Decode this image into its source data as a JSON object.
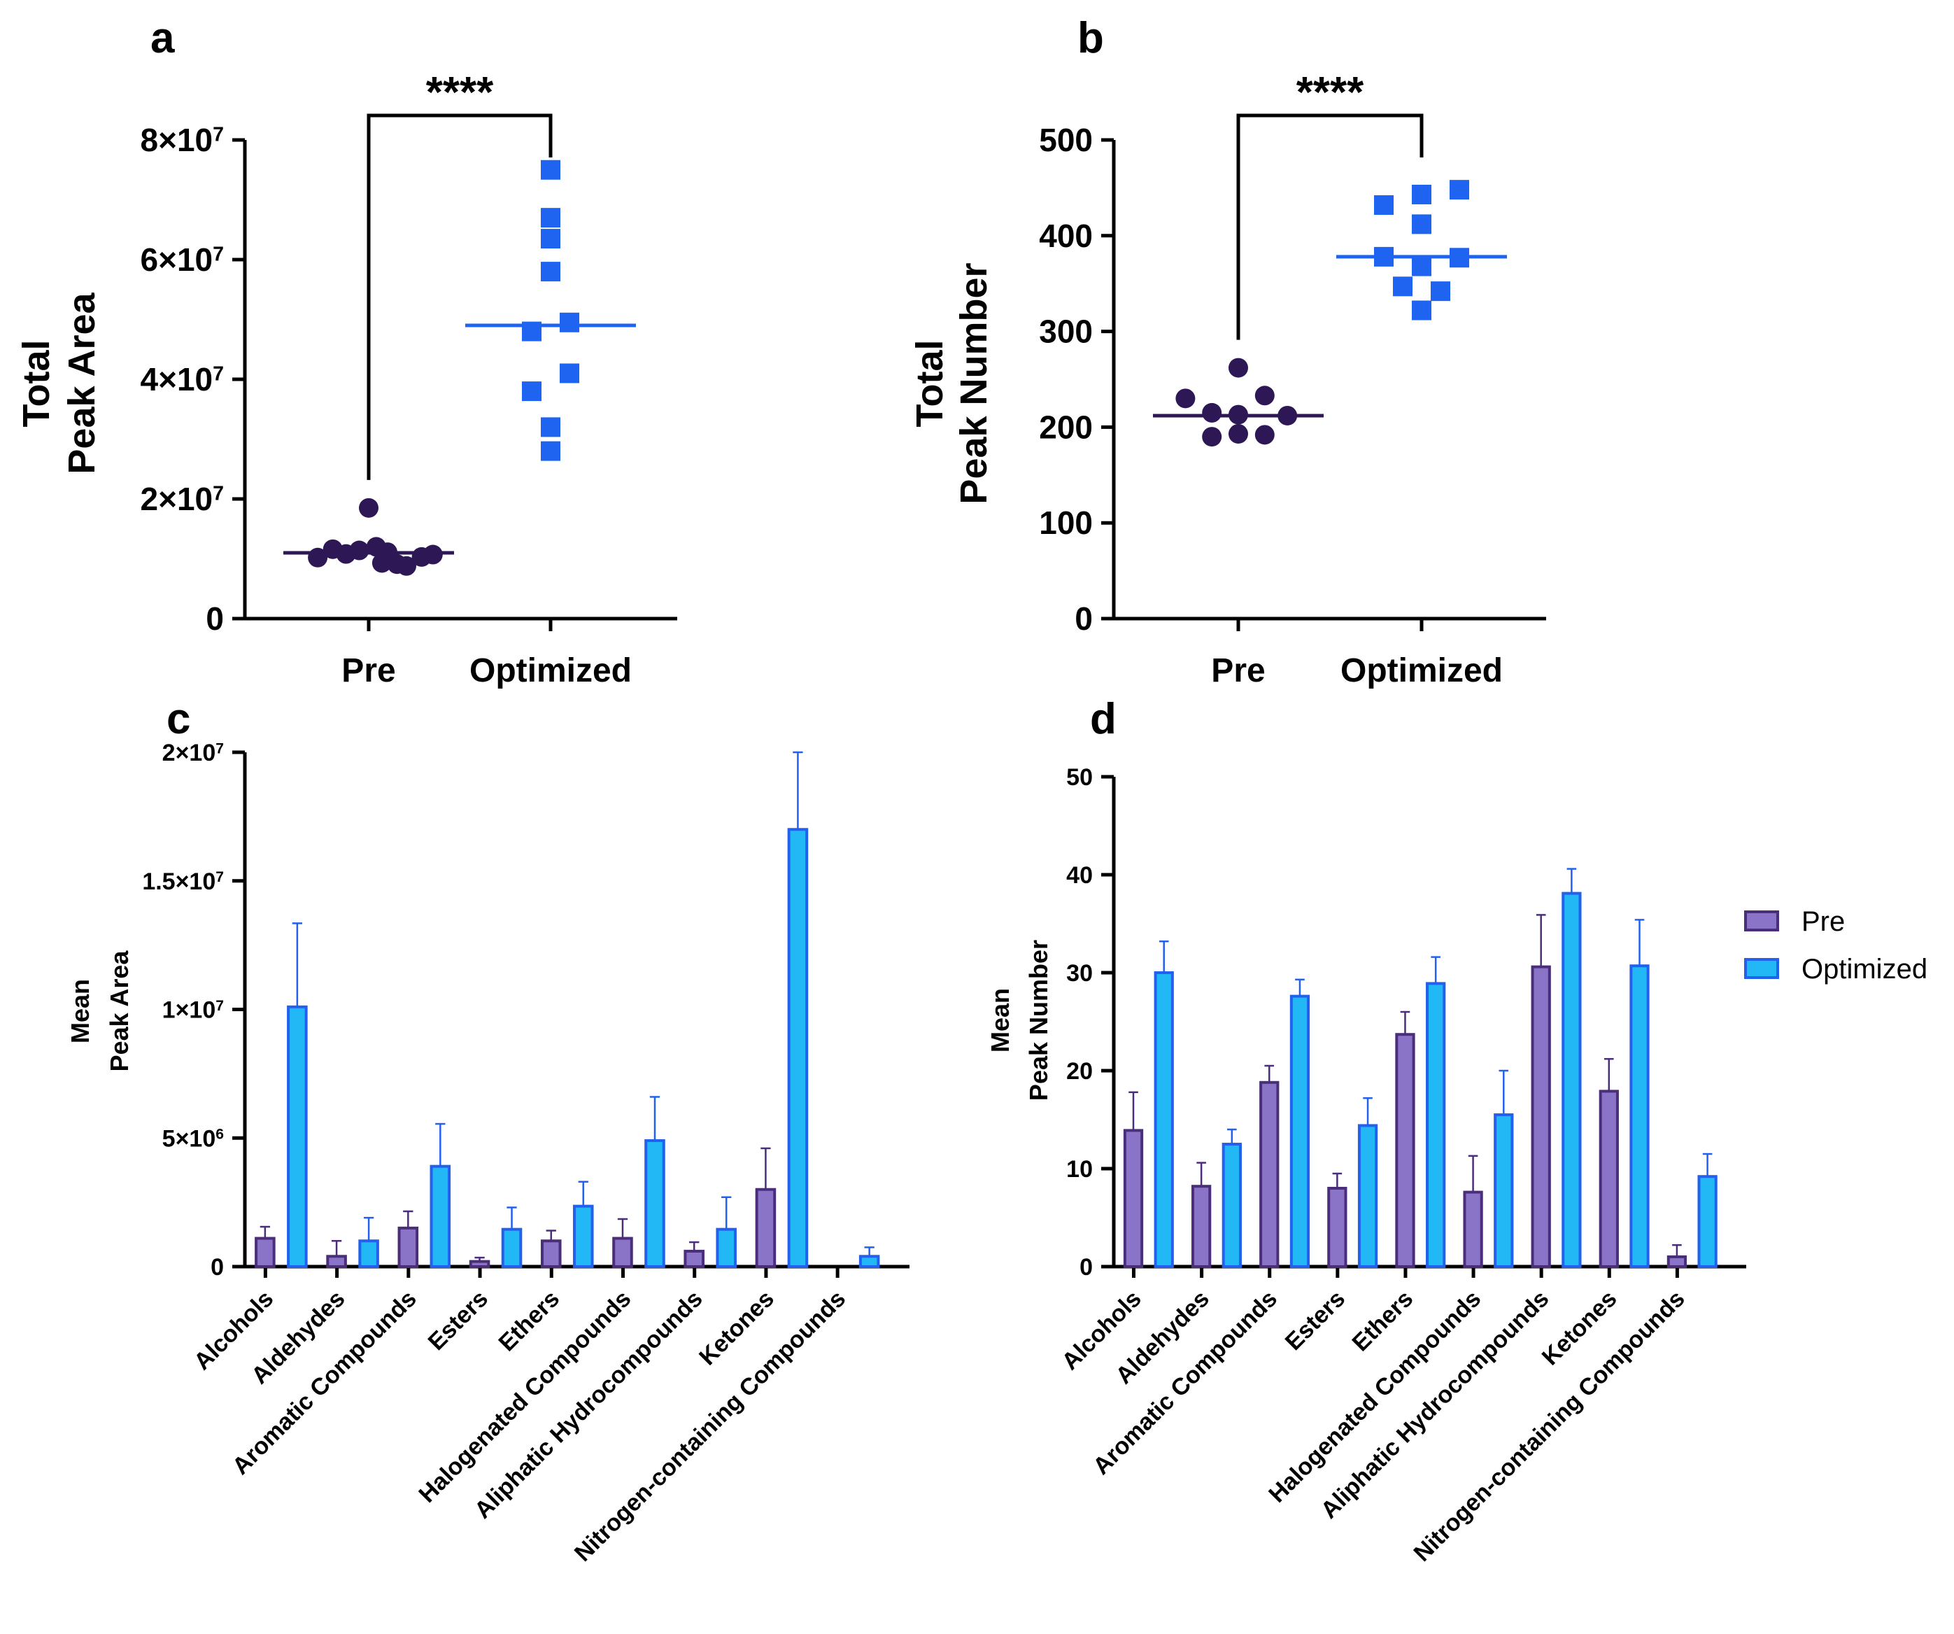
{
  "colors": {
    "pre": "#2d1855",
    "optimized": "#1f64f0",
    "pre_bar": "#8a74c8",
    "opt_bar": "#21b8f5",
    "err_pre": "#4a2e7a",
    "err_opt": "#2260ee"
  },
  "chart_data": [
    {
      "panel": "a",
      "type": "scatter",
      "ylabel_lines": [
        "Total",
        "Peak Area"
      ],
      "categories": [
        "Pre",
        "Optimized"
      ],
      "ylim": [
        0,
        80000000
      ],
      "yticks": [
        0,
        20000000,
        40000000,
        60000000,
        80000000
      ],
      "ytick_labels": [
        {
          "base": "0",
          "exp": ""
        },
        {
          "base": "2×10",
          "exp": "7"
        },
        {
          "base": "4×10",
          "exp": "7"
        },
        {
          "base": "6×10",
          "exp": "7"
        },
        {
          "base": "8×10",
          "exp": "7"
        }
      ],
      "series": [
        {
          "name": "Pre",
          "marker": "circle",
          "median": 11000000,
          "points": [
            [
              -0.27,
              10200000
            ],
            [
              -0.19,
              11600000
            ],
            [
              -0.12,
              10800000
            ],
            [
              -0.05,
              11400000
            ],
            [
              0.0,
              18500000
            ],
            [
              0.04,
              12000000
            ],
            [
              0.1,
              11100000
            ],
            [
              0.15,
              9100000
            ],
            [
              0.2,
              8800000
            ],
            [
              0.28,
              10300000
            ],
            [
              0.34,
              10700000
            ],
            [
              0.07,
              9300000
            ]
          ]
        },
        {
          "name": "Optimized",
          "marker": "square",
          "median": 49000000,
          "points": [
            [
              0.0,
              75000000
            ],
            [
              0.0,
              67000000
            ],
            [
              0.0,
              63500000
            ],
            [
              0.0,
              58000000
            ],
            [
              0.1,
              49500000
            ],
            [
              -0.1,
              48000000
            ],
            [
              0.1,
              41000000
            ],
            [
              -0.1,
              38000000
            ],
            [
              0.0,
              32000000
            ],
            [
              0.0,
              28000000
            ]
          ]
        }
      ],
      "significance": "****"
    },
    {
      "panel": "b",
      "type": "scatter",
      "ylabel_lines": [
        "Total",
        "Peak Number"
      ],
      "categories": [
        "Pre",
        "Optimized"
      ],
      "ylim": [
        0,
        500
      ],
      "yticks": [
        0,
        100,
        200,
        300,
        400,
        500
      ],
      "ytick_labels": [
        {
          "base": "0",
          "exp": ""
        },
        {
          "base": "100",
          "exp": ""
        },
        {
          "base": "200",
          "exp": ""
        },
        {
          "base": "300",
          "exp": ""
        },
        {
          "base": "400",
          "exp": ""
        },
        {
          "base": "500",
          "exp": ""
        }
      ],
      "series": [
        {
          "name": "Pre",
          "marker": "circle",
          "median": 212,
          "points": [
            [
              -0.28,
              230
            ],
            [
              0.0,
              262
            ],
            [
              0.14,
              233
            ],
            [
              -0.14,
              215
            ],
            [
              0.0,
              213
            ],
            [
              0.26,
              212
            ],
            [
              -0.14,
              190
            ],
            [
              0.0,
              193
            ],
            [
              0.14,
              192
            ]
          ]
        },
        {
          "name": "Optimized",
          "marker": "square",
          "median": 378,
          "points": [
            [
              -0.2,
              432
            ],
            [
              0.0,
              443
            ],
            [
              0.2,
              448
            ],
            [
              0.0,
              412
            ],
            [
              -0.2,
              378
            ],
            [
              0.2,
              377
            ],
            [
              0.0,
              368
            ],
            [
              -0.1,
              347
            ],
            [
              0.1,
              342
            ],
            [
              0.0,
              322
            ]
          ]
        }
      ],
      "significance": "****"
    },
    {
      "panel": "c",
      "type": "bar",
      "ylabel_lines": [
        "Mean",
        "Peak Area"
      ],
      "categories": [
        "Alcohols",
        "Aldehydes",
        "Aromatic Compounds",
        "Esters",
        "Ethers",
        "Halogenated Compounds",
        "Aliphatic Hydrocompounds",
        "Ketones",
        "Nitrogen-containing Compounds"
      ],
      "ylim": [
        0,
        20000000
      ],
      "yticks": [
        0,
        5000000,
        10000000,
        15000000,
        20000000
      ],
      "ytick_labels": [
        {
          "base": "0",
          "exp": ""
        },
        {
          "base": "5×10",
          "exp": "6"
        },
        {
          "base": "1×10",
          "exp": "7"
        },
        {
          "base": "1.5×10",
          "exp": "7"
        },
        {
          "base": "2×10",
          "exp": "7"
        }
      ],
      "series": [
        {
          "name": "Pre",
          "values": [
            1100000,
            400000,
            1500000,
            200000,
            1000000,
            1100000,
            600000,
            3000000,
            0
          ],
          "errors": [
            450000,
            600000,
            650000,
            150000,
            400000,
            750000,
            350000,
            1600000,
            0
          ]
        },
        {
          "name": "Optimized",
          "values": [
            10100000,
            1000000,
            3900000,
            1450000,
            2350000,
            4900000,
            1450000,
            17000000,
            400000
          ],
          "errors": [
            3250000,
            900000,
            1650000,
            850000,
            950000,
            1700000,
            1250000,
            3000000,
            350000
          ]
        }
      ]
    },
    {
      "panel": "d",
      "type": "bar",
      "ylabel_lines": [
        "Mean",
        "Peak Number"
      ],
      "categories": [
        "Alcohols",
        "Aldehydes",
        "Aromatic Compounds",
        "Esters",
        "Ethers",
        "Halogenated Compounds",
        "Aliphatic Hydrocompounds",
        "Ketones",
        "Nitrogen-containing Compounds"
      ],
      "ylim": [
        0,
        50
      ],
      "yticks": [
        0,
        10,
        20,
        30,
        40,
        50
      ],
      "ytick_labels": [
        {
          "base": "0",
          "exp": ""
        },
        {
          "base": "10",
          "exp": ""
        },
        {
          "base": "20",
          "exp": ""
        },
        {
          "base": "30",
          "exp": ""
        },
        {
          "base": "40",
          "exp": ""
        },
        {
          "base": "50",
          "exp": ""
        }
      ],
      "series": [
        {
          "name": "Pre",
          "values": [
            13.9,
            8.2,
            18.8,
            8.0,
            23.7,
            7.6,
            30.6,
            17.9,
            1.0
          ],
          "errors": [
            3.9,
            2.4,
            1.7,
            1.5,
            2.3,
            3.7,
            5.3,
            3.3,
            1.2
          ]
        },
        {
          "name": "Optimized",
          "values": [
            30.0,
            12.5,
            27.6,
            14.4,
            28.9,
            15.5,
            38.1,
            30.7,
            9.2
          ],
          "errors": [
            3.2,
            1.5,
            1.7,
            2.8,
            2.7,
            4.5,
            2.5,
            4.7,
            2.3
          ]
        }
      ],
      "legend": [
        "Pre",
        "Optimized"
      ]
    }
  ]
}
